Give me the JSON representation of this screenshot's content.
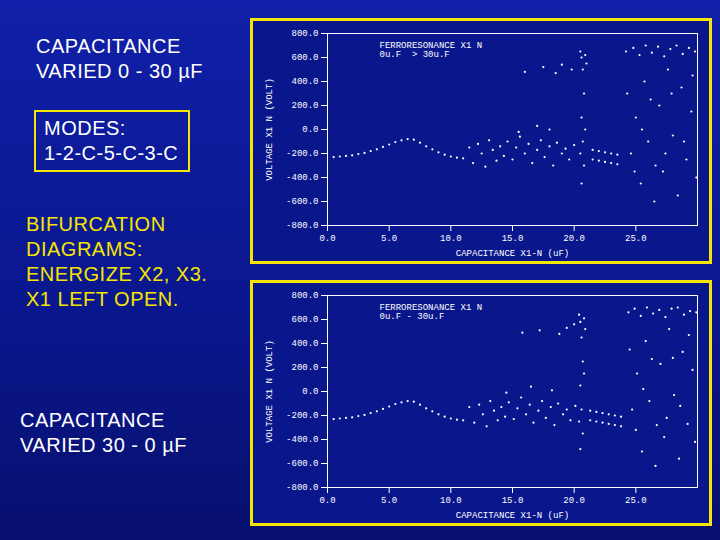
{
  "left_text": {
    "top": "CAPACITANCE\nVARIED 0 - 30 µF",
    "box": "MODES:\n1-2-C-5-C-3-C",
    "middle": "BIFURCATION\nDIAGRAMS:\nENERGIZE X2, X3.\nX1 LEFT OPEN.",
    "bottom": "CAPACITANCE\nVARIED 30 - 0 µF"
  },
  "chart_data": [
    {
      "type": "scatter",
      "annotation": [
        "FERRORESONANCE X1 N",
        "0u.F  > 30u.F"
      ],
      "x_label": "CAPACITANCE X1-N (uF)",
      "y_label": "VOLTAGE X1 N (VOLT)",
      "color": "#ffffff",
      "marker": "dot",
      "xlim": [
        0,
        30
      ],
      "xticks": [
        {
          "value": 0,
          "label": "0.0"
        },
        {
          "value": 5,
          "label": "5.0"
        },
        {
          "value": 10,
          "label": "10.0"
        },
        {
          "value": 15,
          "label": "15.0"
        },
        {
          "value": 20,
          "label": "20.0"
        },
        {
          "value": 25,
          "label": "25.0"
        }
      ],
      "ylim": [
        -800,
        800
      ],
      "yticks": [
        {
          "value": -800,
          "label": "-800.0"
        },
        {
          "value": -600,
          "label": "-600.0"
        },
        {
          "value": -400,
          "label": "-400.0"
        },
        {
          "value": -200,
          "label": "-200.0"
        },
        {
          "value": 0,
          "label": "0.0"
        },
        {
          "value": 200,
          "label": "200.0"
        },
        {
          "value": 400,
          "label": "400.0"
        },
        {
          "value": 600,
          "label": "600.0"
        },
        {
          "value": 800,
          "label": "800.0"
        }
      ],
      "x": [
        0.5,
        1,
        1.5,
        2,
        2.5,
        3,
        3.5,
        4,
        4.5,
        5,
        5.5,
        6,
        6.5,
        7,
        7.5,
        8,
        8.5,
        9,
        9.5,
        10,
        10.5,
        11,
        11.5,
        11.8,
        12.2,
        12.5,
        12.8,
        13.1,
        13.4,
        13.7,
        14,
        14.3,
        14.6,
        15,
        15.3,
        15.6,
        16,
        16.3,
        16.6,
        17,
        17.3,
        17.6,
        18,
        18.3,
        18.6,
        19,
        19.3,
        19.6,
        20,
        15.5,
        17,
        18,
        16,
        17.5,
        18.5,
        19,
        19.8,
        20.5,
        20.6,
        20.7,
        20.8,
        20.6,
        20.7,
        20.8,
        20.6,
        20.9,
        21,
        20.5,
        20.9,
        21.5,
        22,
        22.5,
        23,
        23.5,
        21.5,
        22,
        22.5,
        23,
        23.5,
        24.2,
        24.8,
        25.3,
        25.8,
        26.3,
        26.8,
        27.3,
        27.8,
        28.3,
        28.8,
        29.3,
        29.8,
        24.3,
        24.6,
        25,
        25.4,
        25.7,
        26,
        26.5,
        26.9,
        27.2,
        27.6,
        28,
        28.4,
        28.7,
        29.1,
        29.5,
        29.9,
        24.9,
        26.2,
        27.4,
        28.9,
        29.6,
        25.5,
        26.6,
        27.9
      ],
      "values": [
        -230,
        -225,
        -220,
        -215,
        -205,
        -195,
        -180,
        -165,
        -145,
        -125,
        -105,
        -90,
        -80,
        -85,
        -110,
        -140,
        -165,
        -190,
        -210,
        -225,
        -235,
        -240,
        -150,
        -280,
        -120,
        -200,
        -310,
        -90,
        -170,
        -260,
        -140,
        -220,
        -100,
        -250,
        -150,
        -60,
        -200,
        -120,
        -280,
        -170,
        -90,
        -230,
        -140,
        -300,
        -110,
        -200,
        -160,
        -250,
        -130,
        -20,
        30,
        0,
        480,
        520,
        470,
        540,
        500,
        650,
        600,
        500,
        300,
        100,
        -100,
        -300,
        -450,
        620,
        550,
        -200,
        0,
        -170,
        -180,
        -190,
        -200,
        -210,
        -250,
        -260,
        -270,
        -280,
        -290,
        650,
        680,
        620,
        700,
        640,
        690,
        610,
        670,
        700,
        630,
        680,
        650,
        300,
        -200,
        100,
        -450,
        400,
        -100,
        -600,
        200,
        -350,
        500,
        -50,
        -550,
        350,
        -250,
        150,
        -400,
        -350,
        250,
        -200,
        -100,
        450,
        0,
        -300,
        300
      ]
    },
    {
      "type": "scatter",
      "annotation": [
        "FERRORESONANCE X1 N",
        "0u.F - 30u.F"
      ],
      "x_label": "CAPACITANCE X1-N (uF)",
      "y_label": "VOLTAGE X1 N (VOLT)",
      "color": "#ffffff",
      "marker": "dot",
      "xlim": [
        0,
        30
      ],
      "xticks": [
        {
          "value": 0,
          "label": "0.0"
        },
        {
          "value": 5,
          "label": "5.0"
        },
        {
          "value": 10,
          "label": "10.0"
        },
        {
          "value": 15,
          "label": "15.0"
        },
        {
          "value": 20,
          "label": "20.0"
        },
        {
          "value": 25,
          "label": "25.0"
        }
      ],
      "ylim": [
        -800,
        800
      ],
      "yticks": [
        {
          "value": -800,
          "label": "-800.0"
        },
        {
          "value": -600,
          "label": "-600.0"
        },
        {
          "value": -400,
          "label": "-400.0"
        },
        {
          "value": -200,
          "label": "-200.0"
        },
        {
          "value": 0,
          "label": "0.0"
        },
        {
          "value": 200,
          "label": "200.0"
        },
        {
          "value": 400,
          "label": "400.0"
        },
        {
          "value": 600,
          "label": "600.0"
        },
        {
          "value": 800,
          "label": "800.0"
        }
      ],
      "x": [
        0.5,
        1,
        1.5,
        2,
        2.5,
        3,
        3.5,
        4,
        4.5,
        5,
        5.5,
        6,
        6.5,
        7,
        7.5,
        8,
        8.5,
        9,
        9.5,
        10,
        10.5,
        11,
        11.5,
        11.9,
        12.3,
        12.6,
        12.9,
        13.2,
        13.5,
        13.8,
        14.1,
        14.4,
        14.7,
        15.1,
        15.4,
        15.7,
        16.1,
        16.4,
        16.7,
        17.1,
        17.4,
        17.7,
        18.1,
        18.4,
        18.7,
        19.1,
        19.4,
        19.7,
        20.1,
        14.5,
        16.5,
        18.2,
        15.8,
        17.2,
        18.8,
        19.4,
        20,
        20.4,
        20.5,
        20.6,
        20.7,
        20.5,
        20.6,
        20.7,
        20.5,
        20.8,
        20.9,
        20.4,
        20.8,
        21.3,
        21.8,
        22.3,
        22.8,
        23.3,
        23.8,
        21.3,
        21.8,
        22.3,
        22.8,
        23.3,
        23.8,
        24.4,
        24.9,
        25.4,
        25.9,
        26.4,
        26.9,
        27.4,
        27.9,
        28.4,
        28.9,
        29.4,
        29.9,
        24.5,
        24.7,
        25.1,
        25.5,
        25.8,
        26.1,
        26.6,
        27,
        27.3,
        27.7,
        28.1,
        28.5,
        28.8,
        29.2,
        29.6,
        29.8,
        25,
        26.3,
        27.5,
        28.6,
        29.3,
        25.6,
        26.7,
        28
      ],
      "values": [
        -230,
        -225,
        -220,
        -215,
        -205,
        -195,
        -180,
        -165,
        -145,
        -125,
        -105,
        -90,
        -80,
        -85,
        -110,
        -140,
        -165,
        -190,
        -210,
        -225,
        -235,
        -240,
        -130,
        -260,
        -110,
        -190,
        -290,
        -80,
        -160,
        -240,
        -130,
        -210,
        -90,
        -230,
        -140,
        -50,
        -190,
        -110,
        -260,
        -160,
        -80,
        -220,
        -130,
        -280,
        -100,
        -190,
        -150,
        -240,
        -120,
        -10,
        40,
        10,
        490,
        510,
        480,
        530,
        560,
        640,
        580,
        450,
        250,
        50,
        -150,
        -350,
        -480,
        610,
        520,
        -250,
        150,
        -160,
        -170,
        -180,
        -190,
        -200,
        -210,
        -240,
        -250,
        -260,
        -270,
        -280,
        -290,
        660,
        690,
        630,
        700,
        650,
        680,
        620,
        690,
        700,
        640,
        670,
        660,
        350,
        -150,
        150,
        -500,
        420,
        -80,
        -620,
        230,
        -380,
        520,
        -30,
        -560,
        330,
        -270,
        180,
        -420,
        -320,
        270,
        -220,
        -120,
        470,
        20,
        -280,
        280
      ]
    }
  ]
}
